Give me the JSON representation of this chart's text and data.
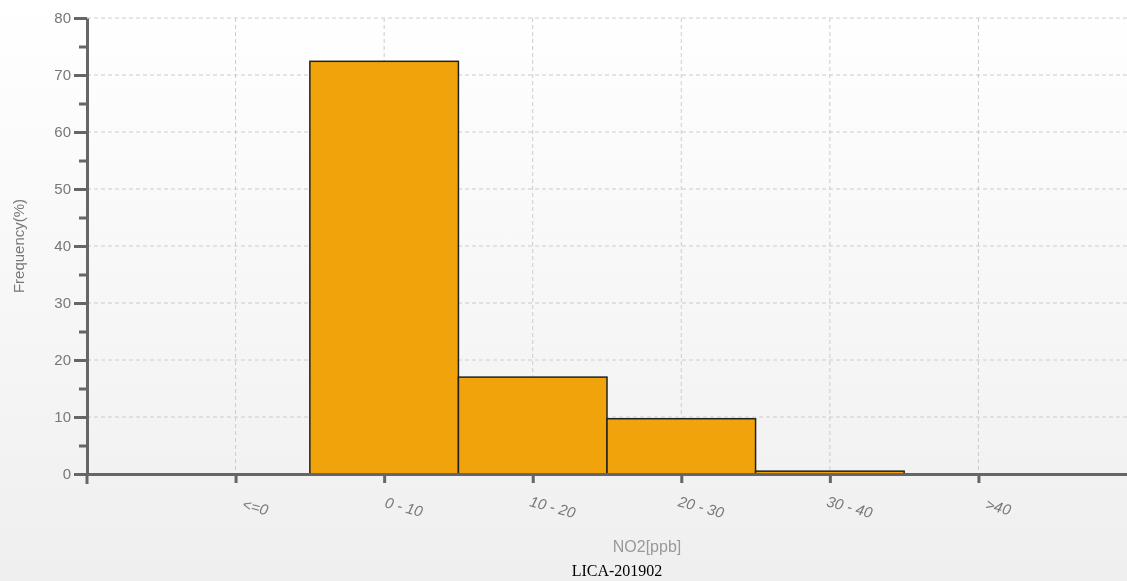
{
  "chart_data": {
    "type": "bar",
    "xlabel": "NO2[ppb]",
    "ylabel": "Frequency(%)",
    "categories": [
      "<=0",
      "0 - 10",
      "10 - 20",
      "20 - 30",
      "30 - 40",
      ">40"
    ],
    "values": [
      0,
      72.4,
      17.0,
      9.7,
      0.5,
      0
    ],
    "color": "#f0a30a",
    "ylim": [
      0,
      80
    ],
    "yticks": [
      0,
      {
        "value": 5,
        "label": null
      },
      10,
      {
        "value": 15,
        "label": null
      },
      20,
      {
        "value": 25,
        "label": null
      },
      30,
      {
        "value": 35,
        "label": null
      },
      40,
      {
        "value": 45,
        "label": null
      },
      50,
      {
        "value": 55,
        "label": null
      },
      60,
      {
        "value": 65,
        "label": null
      },
      70,
      {
        "value": 75,
        "label": null
      },
      80
    ],
    "grid": true,
    "annotations": [
      "LICA-201902"
    ]
  }
}
